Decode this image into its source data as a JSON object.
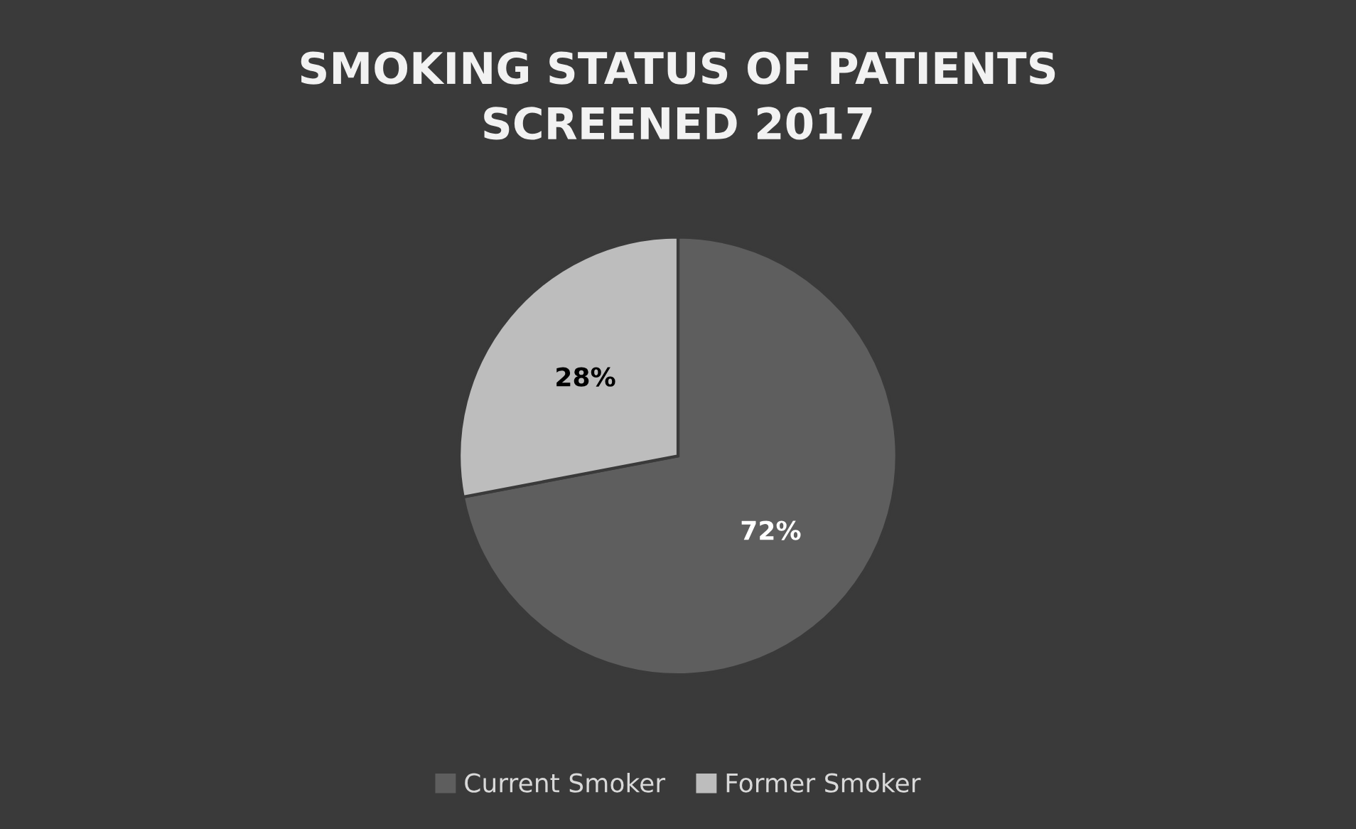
{
  "chart_data": {
    "type": "pie",
    "title": "SMOKING STATUS OF PATIENTS\nSCREENED 2017",
    "categories": [
      "Current Smoker",
      "Former Smoker"
    ],
    "values": [
      72,
      28
    ],
    "colors": [
      "#5e5e5e",
      "#bdbdbd"
    ],
    "value_labels": [
      "72%",
      "28%"
    ],
    "legend": "bottom"
  }
}
